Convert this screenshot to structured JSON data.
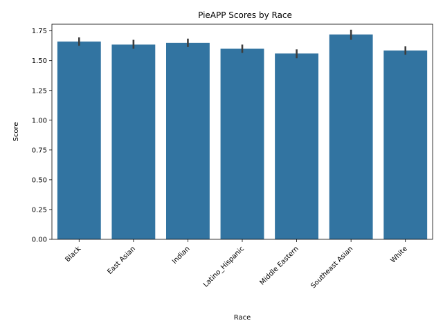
{
  "chart_data": {
    "type": "bar",
    "title": "PieAPP Scores by Race",
    "xlabel": "Race",
    "ylabel": "Score",
    "categories": [
      "Black",
      "East Asian",
      "Indian",
      "Latino_Hispanic",
      "Middle Eastern",
      "Southeast Asian",
      "White"
    ],
    "values": [
      1.66,
      1.635,
      1.65,
      1.6,
      1.56,
      1.72,
      1.585
    ],
    "error_low": [
      1.625,
      1.6,
      1.615,
      1.565,
      1.52,
      1.675,
      1.55
    ],
    "error_high": [
      1.695,
      1.675,
      1.685,
      1.635,
      1.595,
      1.76,
      1.62
    ],
    "ylim": [
      0,
      1.806
    ],
    "yticks": [
      0.0,
      0.25,
      0.5,
      0.75,
      1.0,
      1.25,
      1.5,
      1.75
    ],
    "ytick_labels": [
      "0.00",
      "0.25",
      "0.50",
      "0.75",
      "1.00",
      "1.25",
      "1.50",
      "1.75"
    ],
    "bar_color": "#3274a1",
    "error_color": "#3d3d3d",
    "grid": false,
    "legend": "none"
  }
}
